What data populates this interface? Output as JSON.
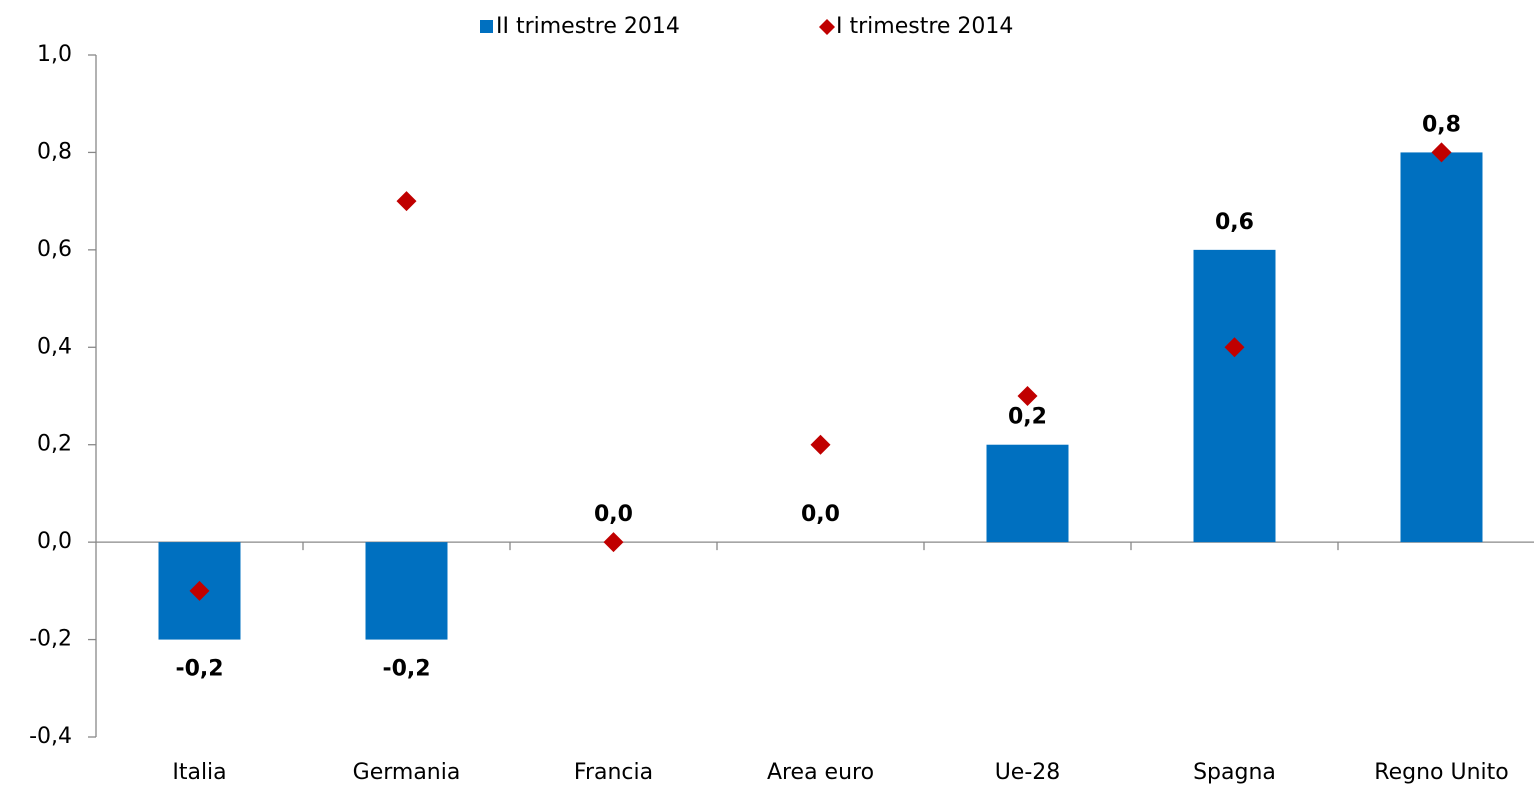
{
  "chart_data": {
    "type": "bar",
    "categories": [
      "Italia",
      "Germania",
      "Francia",
      "Area euro",
      "Ue-28",
      "Spagna",
      "Regno Unito"
    ],
    "series": [
      {
        "name": "II trimestre 2014",
        "type": "bar",
        "color": "#0070c0",
        "values": [
          -0.2,
          -0.2,
          0.0,
          0.0,
          0.2,
          0.6,
          0.8
        ],
        "value_labels": [
          "-0,2",
          "-0,2",
          "0,0",
          "0,0",
          "0,2",
          "0,6",
          "0,8"
        ]
      },
      {
        "name": "I trimestre 2014",
        "type": "scatter",
        "color": "#c00000",
        "values": [
          -0.1,
          0.7,
          0.0,
          0.2,
          0.3,
          0.4,
          0.8
        ]
      }
    ],
    "ylim": [
      -0.4,
      1.0
    ],
    "yticks": [
      {
        "value": -0.4,
        "label": "-0,4"
      },
      {
        "value": -0.2,
        "label": "-0,2"
      },
      {
        "value": 0.0,
        "label": "0,0"
      },
      {
        "value": 0.2,
        "label": "0,2"
      },
      {
        "value": 0.4,
        "label": "0,4"
      },
      {
        "value": 0.6,
        "label": "0,6"
      },
      {
        "value": 0.8,
        "label": "0,8"
      },
      {
        "value": 1.0,
        "label": "1,0"
      }
    ],
    "legend": "top",
    "grid": false
  }
}
